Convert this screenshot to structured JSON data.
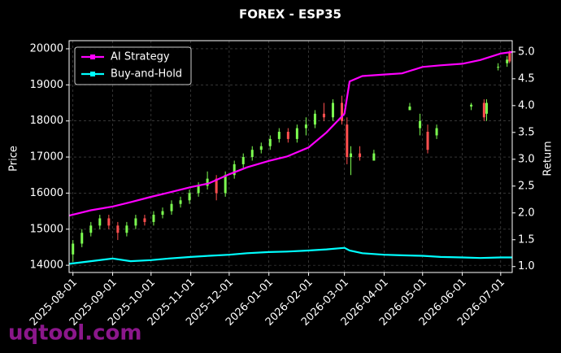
{
  "chart_data": {
    "type": "candlestick",
    "title": "FOREX - ESP35",
    "ylabel": "Price",
    "y2label": "Return",
    "watermark": "uqtool.com",
    "xlim": [
      "2025-07-29",
      "2026-07-10"
    ],
    "xticks": [
      "2025-08-01",
      "2025-09-01",
      "2025-10-01",
      "2025-11-01",
      "2025-12-01",
      "2026-01-01",
      "2026-02-01",
      "2026-03-01",
      "2026-04-01",
      "2026-05-01",
      "2026-06-01",
      "2026-07-01"
    ],
    "ylim": [
      13800,
      20225
    ],
    "yticks": [
      14000,
      15000,
      16000,
      17000,
      18000,
      19000,
      20000
    ],
    "y2lim": [
      0.89,
      5.21
    ],
    "y2ticks": [
      {
        "value": 1.0,
        "label": "1.0"
      },
      1.5,
      {
        "value": 2.0,
        "label": "2.0"
      },
      2.5,
      {
        "value": 3.0,
        "label": "3.0"
      },
      3.5,
      {
        "value": 4.0,
        "label": "4.0"
      },
      4.5,
      {
        "value": 5.0,
        "label": "5.0"
      }
    ],
    "grid": true,
    "legend": "upper left",
    "up_color": "#7CFC50",
    "down_color": "#FF4F4F",
    "candles": {
      "x": [
        "2025-08-01",
        "2025-08-08",
        "2025-08-15",
        "2025-08-22",
        "2025-08-29",
        "2025-09-05",
        "2025-09-12",
        "2025-09-19",
        "2025-09-26",
        "2025-10-03",
        "2025-10-10",
        "2025-10-17",
        "2025-10-24",
        "2025-10-31",
        "2025-11-07",
        "2025-11-14",
        "2025-11-21",
        "2025-11-28",
        "2025-12-05",
        "2025-12-12",
        "2025-12-19",
        "2025-12-26",
        "2026-01-02",
        "2026-01-09",
        "2026-01-16",
        "2026-01-23",
        "2026-01-30",
        "2026-02-06",
        "2026-02-13",
        "2026-02-20",
        "2026-02-27",
        "2026-03-03",
        "2026-03-06",
        "2026-03-13",
        "2026-03-24",
        "2026-04-21",
        "2026-04-29",
        "2026-05-05",
        "2026-05-12",
        "2026-06-08",
        "2026-06-18",
        "2026-06-20",
        "2026-06-29",
        "2026-07-06",
        "2026-07-08"
      ],
      "open": [
        14300,
        14600,
        14900,
        15100,
        15300,
        15100,
        14900,
        15100,
        15300,
        15200,
        15400,
        15500,
        15700,
        15800,
        16000,
        16200,
        16400,
        16000,
        16500,
        16800,
        17000,
        17200,
        17300,
        17500,
        17700,
        17500,
        17800,
        17900,
        18200,
        18100,
        18500,
        17900,
        17000,
        17100,
        16900,
        18300,
        17800,
        17700,
        17600,
        18400,
        18500,
        18200,
        19500,
        19600,
        19900
      ],
      "high": [
        14700,
        15000,
        15200,
        15400,
        15400,
        15200,
        15200,
        15400,
        15400,
        15500,
        15600,
        15800,
        15900,
        16100,
        16300,
        16600,
        16500,
        16600,
        16900,
        17100,
        17300,
        17400,
        17600,
        17800,
        17800,
        17900,
        18100,
        18300,
        18500,
        18600,
        18700,
        18100,
        17300,
        17300,
        17200,
        18500,
        18200,
        17900,
        17900,
        18500,
        18600,
        18600,
        19600,
        19800,
        19950
      ],
      "low": [
        14100,
        14500,
        14800,
        15000,
        15000,
        14700,
        14800,
        15000,
        15100,
        15100,
        15300,
        15400,
        15600,
        15700,
        15900,
        16100,
        15800,
        15900,
        16400,
        16700,
        16900,
        17100,
        17200,
        17400,
        17400,
        17400,
        17600,
        17800,
        18000,
        18000,
        17900,
        16800,
        16500,
        16900,
        16900,
        18300,
        17600,
        17100,
        17500,
        18300,
        18000,
        18000,
        19400,
        19500,
        19600
      ],
      "close": [
        14600,
        14900,
        15100,
        15300,
        15100,
        14900,
        15100,
        15300,
        15200,
        15400,
        15500,
        15700,
        15800,
        16000,
        16200,
        16400,
        16000,
        16500,
        16800,
        17000,
        17200,
        17300,
        17500,
        17700,
        17500,
        17800,
        17900,
        18200,
        18100,
        18500,
        18000,
        17000,
        17100,
        17000,
        17100,
        18400,
        18000,
        17200,
        17800,
        18450,
        18100,
        18500,
        19500,
        19700,
        19650
      ]
    },
    "x": [
      "2025-07-29",
      "2025-08-15",
      "2025-09-01",
      "2025-09-15",
      "2025-10-01",
      "2025-10-15",
      "2025-11-01",
      "2025-11-15",
      "2025-12-01",
      "2025-12-15",
      "2026-01-01",
      "2026-01-15",
      "2026-02-01",
      "2026-02-15",
      "2026-03-01",
      "2026-03-05",
      "2026-03-15",
      "2026-04-01",
      "2026-04-15",
      "2026-05-01",
      "2026-05-15",
      "2026-06-01",
      "2026-06-15",
      "2026-07-01",
      "2026-07-10"
    ],
    "series": [
      {
        "name": "AI Strategy",
        "color": "#FF00FF",
        "axis": "y2",
        "values": [
          1.95,
          2.05,
          2.12,
          2.2,
          2.3,
          2.38,
          2.48,
          2.55,
          2.72,
          2.85,
          2.97,
          3.05,
          3.22,
          3.5,
          3.85,
          4.45,
          4.55,
          4.58,
          4.6,
          4.72,
          4.75,
          4.78,
          4.85,
          4.97,
          5.0
        ]
      },
      {
        "name": "Buy-and-Hold",
        "color": "#00FFFF",
        "axis": "y2",
        "values": [
          1.05,
          1.1,
          1.15,
          1.1,
          1.12,
          1.15,
          1.18,
          1.2,
          1.22,
          1.25,
          1.27,
          1.28,
          1.3,
          1.32,
          1.35,
          1.3,
          1.25,
          1.22,
          1.21,
          1.2,
          1.18,
          1.17,
          1.16,
          1.17,
          1.17
        ]
      }
    ]
  }
}
